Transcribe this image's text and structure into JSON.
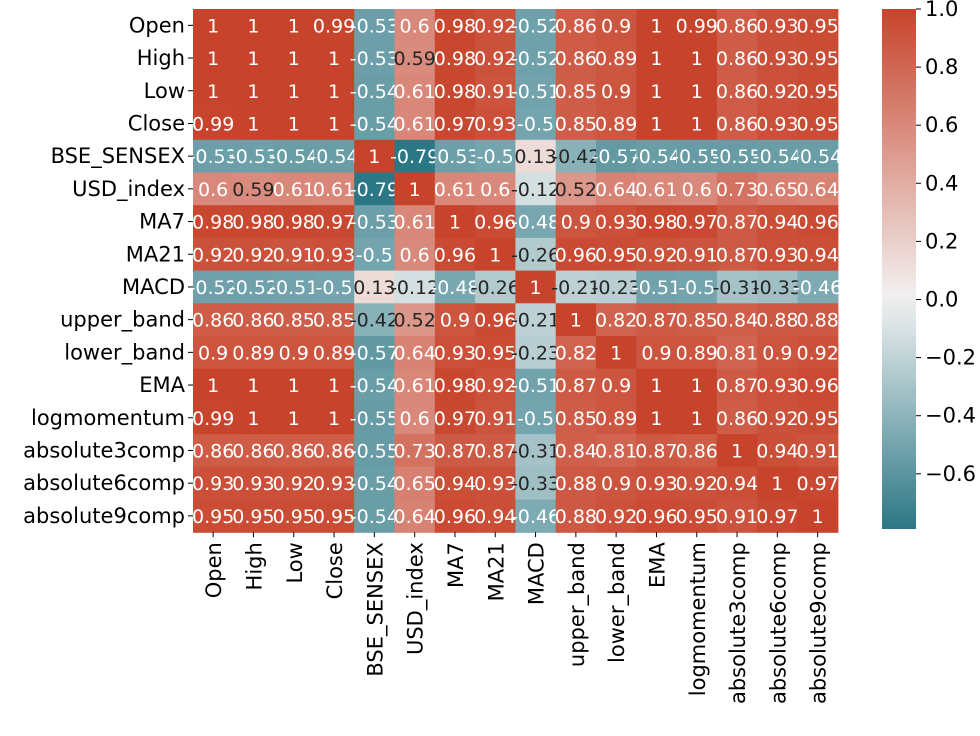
{
  "chart_data": {
    "type": "heatmap",
    "title": "",
    "variables": [
      "Open",
      "High",
      "Low",
      "Close",
      "BSE_SENSEX",
      "USD_index",
      "MA7",
      "MA21",
      "MACD",
      "upper_band",
      "lower_band",
      "EMA",
      "logmomentum",
      "absolute3comp",
      "absolute6comp",
      "absolute9comp"
    ],
    "matrix": [
      [
        1,
        1,
        1,
        0.99,
        -0.53,
        0.6,
        0.98,
        0.92,
        -0.52,
        0.86,
        0.9,
        1,
        0.99,
        0.86,
        0.93,
        0.95
      ],
      [
        1,
        1,
        1,
        1,
        -0.53,
        0.59,
        0.98,
        0.92,
        -0.52,
        0.86,
        0.89,
        1,
        1,
        0.86,
        0.93,
        0.95
      ],
      [
        1,
        1,
        1,
        1,
        -0.54,
        0.61,
        0.98,
        0.91,
        -0.51,
        0.85,
        0.9,
        1,
        1,
        0.86,
        0.92,
        0.95
      ],
      [
        0.99,
        1,
        1,
        1,
        -0.54,
        0.61,
        0.97,
        0.93,
        -0.5,
        0.85,
        0.89,
        1,
        1,
        0.86,
        0.93,
        0.95
      ],
      [
        -0.53,
        -0.53,
        -0.54,
        -0.54,
        1,
        -0.79,
        -0.53,
        -0.5,
        0.13,
        -0.42,
        -0.57,
        -0.54,
        -0.55,
        -0.55,
        -0.54,
        -0.54
      ],
      [
        0.6,
        0.59,
        0.61,
        0.61,
        -0.79,
        1,
        0.61,
        0.6,
        -0.12,
        0.52,
        0.64,
        0.61,
        0.6,
        0.73,
        0.65,
        0.64
      ],
      [
        0.98,
        0.98,
        0.98,
        0.97,
        -0.53,
        0.61,
        1,
        0.96,
        -0.48,
        0.9,
        0.93,
        0.98,
        0.97,
        0.87,
        0.94,
        0.96
      ],
      [
        0.92,
        0.92,
        0.91,
        0.93,
        -0.5,
        0.6,
        0.96,
        1,
        -0.26,
        0.96,
        0.95,
        0.92,
        0.91,
        0.87,
        0.93,
        0.94
      ],
      [
        -0.52,
        -0.52,
        -0.51,
        -0.5,
        0.13,
        -0.12,
        -0.48,
        -0.26,
        1,
        -0.21,
        -0.23,
        -0.51,
        -0.5,
        -0.31,
        -0.33,
        -0.46
      ],
      [
        0.86,
        0.86,
        0.85,
        0.85,
        -0.42,
        0.52,
        0.9,
        0.96,
        -0.21,
        1,
        0.82,
        0.87,
        0.85,
        0.84,
        0.88,
        0.88
      ],
      [
        0.9,
        0.89,
        0.9,
        0.89,
        -0.57,
        0.64,
        0.93,
        0.95,
        -0.23,
        0.82,
        1,
        0.9,
        0.89,
        0.81,
        0.9,
        0.92
      ],
      [
        1,
        1,
        1,
        1,
        -0.54,
        0.61,
        0.98,
        0.92,
        -0.51,
        0.87,
        0.9,
        1,
        1,
        0.87,
        0.93,
        0.96
      ],
      [
        0.99,
        1,
        1,
        1,
        -0.55,
        0.6,
        0.97,
        0.91,
        -0.5,
        0.85,
        0.89,
        1,
        1,
        0.86,
        0.92,
        0.95
      ],
      [
        0.86,
        0.86,
        0.86,
        0.86,
        -0.55,
        0.73,
        0.87,
        0.87,
        -0.31,
        0.84,
        0.81,
        0.87,
        0.86,
        1,
        0.94,
        0.91
      ],
      [
        0.93,
        0.93,
        0.92,
        0.93,
        -0.54,
        0.65,
        0.94,
        0.93,
        -0.33,
        0.88,
        0.9,
        0.93,
        0.92,
        0.94,
        1,
        0.97
      ],
      [
        0.95,
        0.95,
        0.95,
        0.95,
        -0.54,
        0.64,
        0.96,
        0.94,
        -0.46,
        0.88,
        0.92,
        0.96,
        0.95,
        0.91,
        0.97,
        1
      ]
    ],
    "colorbar": {
      "min": -0.79,
      "max": 1.0,
      "ticks": [
        1.0,
        0.8,
        0.6,
        0.4,
        0.2,
        0.0,
        -0.2,
        -0.4,
        -0.6
      ],
      "tick_labels": [
        "1.0",
        "0.8",
        "0.6",
        "0.4",
        "0.2",
        "0.0",
        "−0.2",
        "−0.4",
        "−0.6"
      ],
      "colors": {
        "negative": "#2b7785",
        "center": "#f2f2f2",
        "positive": "#c8432b"
      }
    }
  }
}
